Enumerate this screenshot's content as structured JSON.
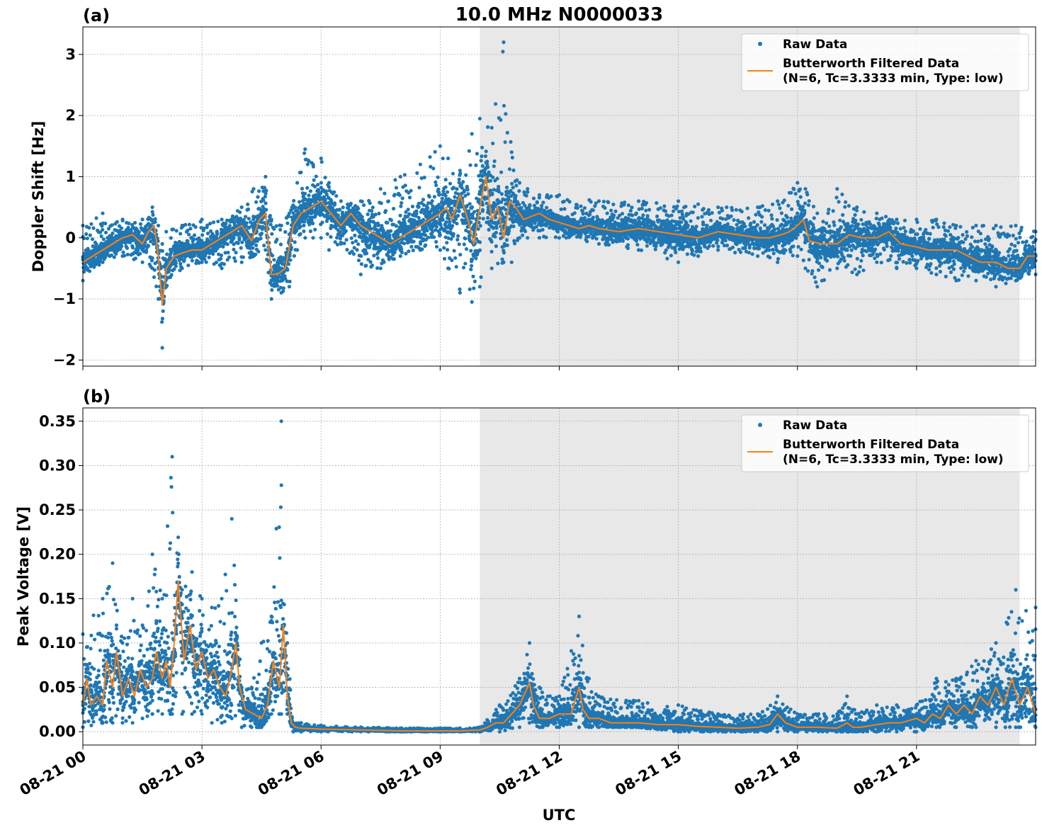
{
  "figure": {
    "title": "10.0 MHz N0000033",
    "xlabel": "UTC",
    "x_tick_labels": [
      "08-21 00",
      "08-21 03",
      "08-21 06",
      "08-21 09",
      "08-21 12",
      "08-21 15",
      "08-21 18",
      "08-21 21"
    ]
  },
  "legend": {
    "raw_label": "Raw Data",
    "filtered_label_line1": "Butterworth Filtered Data",
    "filtered_label_line2": "(N=6, Tc=3.3333 min, Type: low)"
  },
  "colors": {
    "raw": "#1f77b4",
    "filtered": "#ff7f0e",
    "shade": "#e8e8e8",
    "grid": "#b0b0b0"
  },
  "chart_data": [
    {
      "panel_label": "(a)",
      "type": "scatter",
      "title": "10.0 MHz N0000033",
      "xlabel": "",
      "ylabel": "Doppler Shift [Hz]",
      "x_unit": "hours since 08-21 00 UTC",
      "xlim": [
        0,
        24
      ],
      "ylim": [
        -2.1,
        3.45
      ],
      "y_ticks": [
        -2,
        -1,
        0,
        1,
        2,
        3
      ],
      "y_tick_labels": [
        "−2",
        "−1",
        "0",
        "1",
        "2",
        "3"
      ],
      "grid": true,
      "legend_position": "top-right",
      "shaded_interval": [
        10.0,
        23.6
      ],
      "series": [
        {
          "name": "Raw Data",
          "kind": "scatter",
          "x": [
            0,
            0.5,
            1,
            1.5,
            1.75,
            1.9,
            2,
            2.1,
            2.5,
            3,
            3.5,
            4,
            4.3,
            4.6,
            4.75,
            5,
            5.2,
            5.4,
            5.6,
            5.8,
            6,
            6.2,
            6.5,
            7,
            7.5,
            8,
            8.5,
            9,
            9.2,
            9.5,
            9.8,
            10,
            10.3,
            10.6,
            10.8,
            11,
            11.2,
            11.5,
            12,
            13,
            14,
            15,
            15.5,
            16,
            17,
            17.5,
            18,
            18.2,
            18.5,
            19,
            19.5,
            20,
            20.5,
            21,
            21.5,
            22,
            22.5,
            23,
            23.5,
            24
          ],
          "y_low": [
            -0.7,
            -0.4,
            -0.3,
            -0.4,
            -0.5,
            -1.0,
            -1.8,
            -0.8,
            -0.5,
            -0.4,
            -0.5,
            -0.4,
            -0.3,
            -0.2,
            -1.0,
            -0.9,
            -0.8,
            -0.2,
            0.0,
            0.0,
            0.0,
            -0.2,
            -0.1,
            -0.6,
            -0.5,
            -0.3,
            -0.2,
            -0.2,
            -0.5,
            -0.9,
            -1.05,
            -0.8,
            -0.5,
            -0.4,
            -0.4,
            0.0,
            0.0,
            0.0,
            0.0,
            -0.1,
            -0.2,
            -0.4,
            -0.3,
            -0.2,
            -0.3,
            -0.4,
            -0.3,
            -0.5,
            -0.8,
            -0.5,
            -0.6,
            -0.4,
            -0.5,
            -0.5,
            -0.6,
            -0.7,
            -0.7,
            -0.8,
            -0.7,
            -0.6
          ],
          "y_high": [
            0.2,
            0.4,
            0.3,
            0.3,
            0.5,
            0.2,
            -0.1,
            0.1,
            0.2,
            0.3,
            0.3,
            0.5,
            0.8,
            1.0,
            0.3,
            0.2,
            0.4,
            0.9,
            1.45,
            1.2,
            1.3,
            0.9,
            0.6,
            0.6,
            0.8,
            1.0,
            1.2,
            1.5,
            1.3,
            1.1,
            1.7,
            1.95,
            1.8,
            3.2,
            1.4,
            0.9,
            0.8,
            0.7,
            0.7,
            0.6,
            0.6,
            0.6,
            0.55,
            0.5,
            0.5,
            0.6,
            0.9,
            0.8,
            0.4,
            0.8,
            0.5,
            0.4,
            0.3,
            0.3,
            0.3,
            0.2,
            0.2,
            0.2,
            0.2,
            0.1
          ]
        },
        {
          "name": "Butterworth Filtered Data (N=6, Tc=3.3333 min, Type: low)",
          "kind": "line",
          "x": [
            0,
            0.25,
            0.5,
            0.75,
            1,
            1.25,
            1.5,
            1.65,
            1.8,
            1.9,
            2.0,
            2.1,
            2.3,
            2.5,
            2.75,
            3,
            3.25,
            3.5,
            3.75,
            4,
            4.25,
            4.45,
            4.6,
            4.75,
            4.9,
            5.1,
            5.3,
            5.5,
            5.75,
            6,
            6.25,
            6.5,
            6.75,
            7,
            7.25,
            7.5,
            7.75,
            8,
            8.25,
            8.5,
            8.75,
            9,
            9.15,
            9.3,
            9.5,
            9.7,
            9.85,
            10,
            10.15,
            10.3,
            10.45,
            10.6,
            10.75,
            10.9,
            11.1,
            11.3,
            11.5,
            11.75,
            12,
            12.25,
            12.5,
            12.75,
            13,
            13.5,
            14,
            14.5,
            15,
            15.5,
            16,
            16.5,
            17,
            17.3,
            17.6,
            17.8,
            18,
            18.15,
            18.3,
            18.6,
            19,
            19.3,
            19.6,
            20,
            20.3,
            20.6,
            21,
            21.3,
            21.6,
            22,
            22.3,
            22.6,
            23,
            23.3,
            23.6,
            23.8,
            24
          ],
          "y": [
            -0.4,
            -0.3,
            -0.2,
            -0.1,
            0.0,
            0.05,
            -0.1,
            0.1,
            0.2,
            -0.3,
            -1.1,
            -0.5,
            -0.3,
            -0.25,
            -0.2,
            -0.2,
            -0.1,
            0.0,
            0.1,
            0.2,
            -0.05,
            0.3,
            0.4,
            -0.6,
            -0.6,
            -0.5,
            0.2,
            0.4,
            0.5,
            0.6,
            0.4,
            0.2,
            0.4,
            0.2,
            0.1,
            0.0,
            -0.1,
            0.0,
            0.1,
            0.2,
            0.3,
            0.4,
            0.5,
            0.3,
            0.7,
            0.3,
            -0.1,
            0.5,
            1.0,
            0.3,
            0.5,
            0.0,
            0.6,
            0.5,
            0.3,
            0.35,
            0.4,
            0.3,
            0.25,
            0.2,
            0.15,
            0.2,
            0.15,
            0.1,
            0.15,
            0.1,
            0.05,
            0.0,
            0.1,
            0.05,
            0.0,
            0.0,
            0.05,
            0.1,
            0.2,
            0.3,
            -0.05,
            -0.1,
            -0.1,
            0.05,
            0.0,
            0.0,
            0.1,
            -0.1,
            -0.15,
            -0.2,
            -0.2,
            -0.2,
            -0.3,
            -0.4,
            -0.4,
            -0.5,
            -0.5,
            -0.3,
            -0.3
          ]
        }
      ]
    },
    {
      "panel_label": "(b)",
      "type": "scatter",
      "title": "",
      "xlabel": "UTC",
      "ylabel": "Peak Voltage [V]",
      "x_unit": "hours since 08-21 00 UTC",
      "xlim": [
        0,
        24
      ],
      "ylim": [
        -0.015,
        0.365
      ],
      "y_ticks": [
        0.0,
        0.05,
        0.1,
        0.15,
        0.2,
        0.25,
        0.3,
        0.35
      ],
      "y_tick_labels": [
        "0.00",
        "0.05",
        "0.10",
        "0.15",
        "0.20",
        "0.25",
        "0.30",
        "0.35"
      ],
      "grid": true,
      "legend_position": "top-right",
      "shaded_interval": [
        10.0,
        23.6
      ],
      "series": [
        {
          "name": "Raw Data",
          "kind": "scatter",
          "x": [
            0,
            0.5,
            0.75,
            1,
            1.25,
            1.5,
            1.75,
            2,
            2.25,
            2.5,
            2.75,
            3,
            3.25,
            3.5,
            3.75,
            4,
            4.25,
            4.5,
            4.75,
            5,
            5.15,
            5.3,
            5.5,
            6,
            7,
            8,
            9,
            9.5,
            10,
            10.5,
            11,
            11.25,
            11.5,
            12,
            12.5,
            12.75,
            13,
            14,
            15,
            16,
            17,
            17.5,
            18,
            19,
            19.25,
            19.5,
            20,
            20.5,
            21,
            21.5,
            22,
            22.5,
            23,
            23.5,
            24
          ],
          "y_low": [
            0.005,
            0.01,
            0.01,
            0.01,
            0.01,
            0.015,
            0.02,
            0.02,
            0.02,
            0.02,
            0.02,
            0.02,
            0.01,
            0.01,
            0.015,
            0.005,
            0.005,
            0.005,
            0.02,
            0.02,
            0.02,
            0.0,
            0.0,
            0.0,
            0.0,
            0.0,
            0.0,
            0.0,
            0.0,
            0.0,
            0.005,
            0.01,
            0.005,
            0.005,
            0.005,
            0.005,
            0.005,
            0.005,
            0.0,
            0.0,
            0.0,
            0.0,
            0.0,
            0.0,
            0.0,
            0.0,
            0.0,
            0.0,
            0.0,
            0.005,
            0.005,
            0.005,
            0.005,
            0.005,
            0.005
          ],
          "y_high": [
            0.11,
            0.15,
            0.19,
            0.1,
            0.15,
            0.12,
            0.2,
            0.15,
            0.31,
            0.16,
            0.18,
            0.15,
            0.14,
            0.15,
            0.24,
            0.05,
            0.05,
            0.1,
            0.13,
            0.35,
            0.1,
            0.01,
            0.01,
            0.007,
            0.005,
            0.004,
            0.004,
            0.004,
            0.005,
            0.03,
            0.06,
            0.1,
            0.05,
            0.04,
            0.13,
            0.06,
            0.04,
            0.035,
            0.03,
            0.02,
            0.02,
            0.04,
            0.02,
            0.02,
            0.04,
            0.02,
            0.03,
            0.03,
            0.03,
            0.06,
            0.06,
            0.08,
            0.1,
            0.16,
            0.14
          ]
        },
        {
          "name": "Butterworth Filtered Data (N=6, Tc=3.3333 min, Type: low)",
          "kind": "line",
          "x": [
            0,
            0.1,
            0.2,
            0.35,
            0.5,
            0.6,
            0.75,
            0.85,
            1,
            1.15,
            1.3,
            1.45,
            1.6,
            1.75,
            1.85,
            2,
            2.1,
            2.2,
            2.3,
            2.4,
            2.55,
            2.7,
            2.85,
            3,
            3.15,
            3.3,
            3.45,
            3.6,
            3.75,
            3.85,
            3.95,
            4.1,
            4.3,
            4.5,
            4.65,
            4.8,
            4.95,
            5.05,
            5.15,
            5.25,
            5.35,
            5.5,
            6,
            7,
            8,
            9,
            9.5,
            10,
            10.2,
            10.4,
            10.6,
            10.8,
            11,
            11.1,
            11.25,
            11.35,
            11.5,
            11.75,
            12,
            12.3,
            12.5,
            12.6,
            12.75,
            13,
            13.3,
            13.6,
            14,
            14.5,
            15,
            15.5,
            16,
            16.5,
            17,
            17.3,
            17.5,
            17.7,
            18,
            18.5,
            19,
            19.25,
            19.4,
            19.6,
            20,
            20.3,
            20.6,
            21,
            21.2,
            21.4,
            21.6,
            21.8,
            22,
            22.2,
            22.4,
            22.6,
            22.8,
            23,
            23.2,
            23.4,
            23.6,
            23.8,
            24
          ],
          "y": [
            0.03,
            0.06,
            0.03,
            0.04,
            0.03,
            0.08,
            0.05,
            0.09,
            0.04,
            0.06,
            0.04,
            0.07,
            0.05,
            0.06,
            0.09,
            0.06,
            0.08,
            0.05,
            0.1,
            0.17,
            0.08,
            0.12,
            0.07,
            0.09,
            0.06,
            0.07,
            0.05,
            0.04,
            0.07,
            0.1,
            0.05,
            0.025,
            0.02,
            0.015,
            0.03,
            0.08,
            0.05,
            0.12,
            0.04,
            0.01,
            0.005,
            0.004,
            0.003,
            0.002,
            0.001,
            0.001,
            0.001,
            0.002,
            0.005,
            0.01,
            0.01,
            0.02,
            0.03,
            0.04,
            0.055,
            0.03,
            0.015,
            0.015,
            0.02,
            0.02,
            0.05,
            0.025,
            0.015,
            0.015,
            0.01,
            0.01,
            0.01,
            0.008,
            0.008,
            0.006,
            0.005,
            0.004,
            0.005,
            0.008,
            0.02,
            0.01,
            0.005,
            0.005,
            0.004,
            0.01,
            0.005,
            0.005,
            0.008,
            0.01,
            0.01,
            0.015,
            0.01,
            0.02,
            0.015,
            0.03,
            0.02,
            0.03,
            0.02,
            0.04,
            0.03,
            0.05,
            0.03,
            0.06,
            0.03,
            0.05,
            0.02
          ]
        }
      ]
    }
  ]
}
